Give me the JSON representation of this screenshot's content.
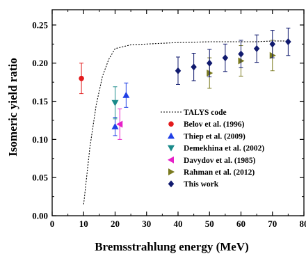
{
  "chart_data": {
    "type": "scatter",
    "title": "",
    "xlabel": "Bremsstrahlung energy (MeV)",
    "ylabel": "Isomeric yield ratio",
    "xlim": [
      0,
      80
    ],
    "ylim": [
      0,
      0.27
    ],
    "x_ticks": [
      "0",
      "10",
      "20",
      "30",
      "40",
      "50",
      "60",
      "70",
      "80"
    ],
    "y_ticks": [
      "0.00",
      "0.05",
      "0.10",
      "0.15",
      "0.20",
      "0.25"
    ],
    "grid": false,
    "legend_position": "center-right",
    "series": [
      {
        "name": "TALYS code",
        "kind": "line",
        "color": "#000000",
        "marker": "none",
        "x": [
          10,
          12,
          14,
          16,
          18,
          20,
          22,
          25,
          30,
          35,
          40,
          45,
          50,
          55,
          60,
          65,
          70,
          75
        ],
        "y": [
          0.015,
          0.09,
          0.145,
          0.183,
          0.205,
          0.219,
          0.221,
          0.224,
          0.225,
          0.226,
          0.227,
          0.2275,
          0.228,
          0.228,
          0.228,
          0.228,
          0.229,
          0.229
        ]
      },
      {
        "name": "Belov et al. (1996)",
        "kind": "points",
        "color": "#e31a1c",
        "marker": "circle",
        "x": [
          9.3
        ],
        "y": [
          0.18
        ],
        "err": [
          0.02
        ]
      },
      {
        "name": "Thiep et al. (2009)",
        "kind": "points",
        "color": "#1f3fe6",
        "marker": "triangle-up",
        "x": [
          20,
          23.5
        ],
        "y": [
          0.117,
          0.158
        ],
        "err": [
          0.012,
          0.016
        ]
      },
      {
        "name": "Demekhina et al. (2002)",
        "kind": "points",
        "color": "#1a8a8a",
        "marker": "triangle-down",
        "x": [
          20
        ],
        "y": [
          0.148
        ],
        "err": [
          0.021
        ]
      },
      {
        "name": "Davydov et al. (1985)",
        "kind": "points",
        "color": "#e620c8",
        "marker": "triangle-left",
        "x": [
          21.5
        ],
        "y": [
          0.12
        ],
        "err": [
          0.02
        ]
      },
      {
        "name": "Rahman et al. (2012)",
        "kind": "points",
        "color": "#7a7a1f",
        "marker": "triangle-right",
        "x": [
          50,
          60,
          70
        ],
        "y": [
          0.187,
          0.203,
          0.21
        ],
        "err": [
          0.02,
          0.02,
          0.02
        ]
      },
      {
        "name": "This work",
        "kind": "points",
        "color": "#101a6e",
        "marker": "diamond",
        "x": [
          40,
          45,
          50,
          55,
          60,
          65,
          70,
          75
        ],
        "y": [
          0.19,
          0.195,
          0.2,
          0.207,
          0.212,
          0.219,
          0.225,
          0.228
        ],
        "err": [
          0.018,
          0.018,
          0.018,
          0.018,
          0.018,
          0.018,
          0.018,
          0.018
        ]
      }
    ]
  }
}
